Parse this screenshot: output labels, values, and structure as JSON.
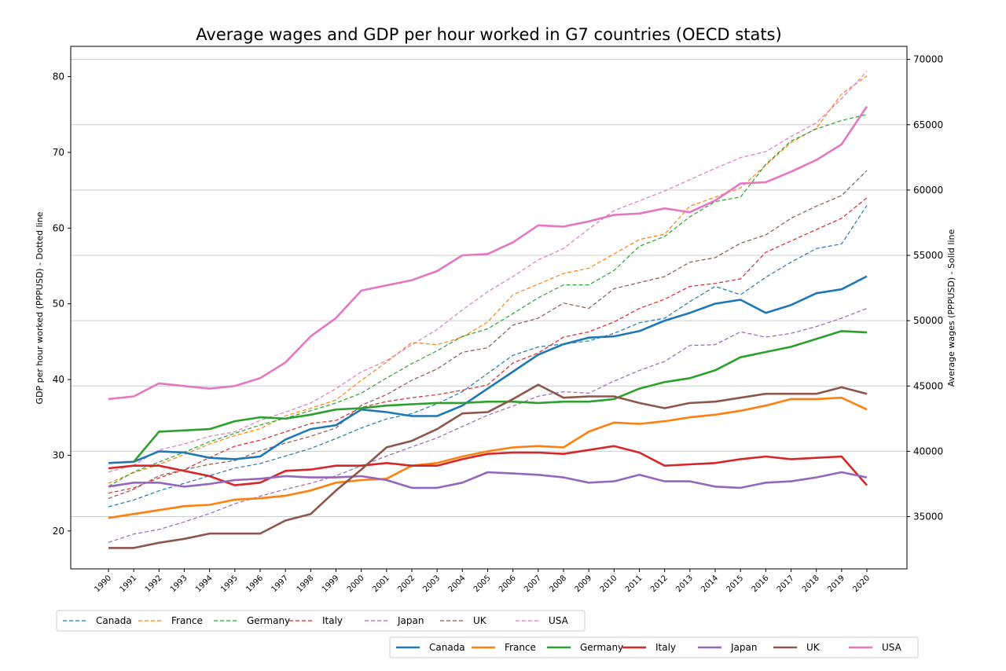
{
  "chart_data": {
    "type": "line",
    "title": "Average wages and GDP per hour worked in G7 countries (OECD stats)",
    "x": [
      1990,
      1991,
      1992,
      1993,
      1994,
      1995,
      1996,
      1997,
      1998,
      1999,
      2000,
      2001,
      2002,
      2003,
      2004,
      2005,
      2006,
      2007,
      2008,
      2009,
      2010,
      2011,
      2012,
      2013,
      2014,
      2015,
      2016,
      2017,
      2018,
      2019,
      2020
    ],
    "left_axis": {
      "label": "GDP per hour worked (PPPUSD) - Dotted line",
      "ylim": [
        15.0,
        84.0
      ],
      "ticks": [
        20,
        30,
        40,
        50,
        60,
        70,
        80
      ]
    },
    "right_axis": {
      "label": "Average wages (PPPUSD) - Solid line",
      "ylim": [
        31000,
        71000
      ],
      "ticks": [
        35000,
        40000,
        45000,
        50000,
        55000,
        60000,
        65000,
        70000
      ]
    },
    "grid": "horizontal lines at right-axis ticks",
    "gdp_series": [
      {
        "name": "Canada",
        "color": "#1f77b4",
        "values": [
          23.2,
          24.1,
          25.3,
          26.3,
          27.3,
          28.3,
          28.9,
          29.9,
          30.9,
          32.2,
          33.6,
          34.8,
          35.5,
          36.8,
          38.4,
          40.8,
          43.2,
          44.3,
          44.7,
          45.1,
          46.1,
          47.5,
          48.1,
          50.3,
          52.3,
          51.2,
          53.5,
          55.5,
          57.3,
          57.9,
          63.0
        ]
      },
      {
        "name": "France",
        "color": "#ff7f0e",
        "values": [
          26.3,
          27.7,
          28.8,
          30.1,
          31.5,
          32.6,
          33.5,
          35.2,
          36.2,
          37.3,
          39.9,
          42.3,
          44.9,
          44.6,
          45.6,
          47.6,
          51.2,
          52.6,
          54.0,
          54.7,
          56.6,
          58.5,
          59.2,
          62.9,
          64.1,
          65.3,
          68.3,
          71.3,
          73.2,
          77.7,
          80.1
        ]
      },
      {
        "name": "Germany",
        "color": "#2ca02c",
        "values": [
          25.9,
          27.8,
          29.1,
          30.4,
          31.8,
          32.9,
          34.0,
          34.9,
          35.9,
          36.9,
          38.2,
          40.2,
          42.1,
          43.8,
          45.7,
          46.7,
          48.7,
          50.8,
          52.5,
          52.5,
          54.4,
          57.6,
          58.9,
          61.5,
          63.5,
          64.1,
          68.4,
          71.5,
          73.1,
          74.2,
          75.0
        ]
      },
      {
        "name": "Italy",
        "color": "#d62728",
        "values": [
          25.0,
          25.7,
          27.0,
          28.1,
          29.7,
          31.2,
          32.0,
          33.1,
          34.2,
          34.6,
          36.3,
          37.1,
          37.6,
          38.0,
          38.6,
          39.3,
          42.2,
          43.5,
          45.6,
          46.3,
          47.6,
          49.4,
          50.6,
          52.3,
          52.7,
          53.3,
          56.8,
          58.3,
          59.8,
          61.3,
          64.0
        ]
      },
      {
        "name": "Japan",
        "color": "#9467bd",
        "values": [
          18.5,
          19.6,
          20.2,
          21.2,
          22.3,
          23.6,
          24.6,
          25.5,
          26.3,
          27.3,
          28.6,
          29.9,
          31.1,
          32.3,
          33.8,
          35.3,
          36.5,
          37.8,
          38.4,
          38.2,
          39.8,
          41.2,
          42.4,
          44.5,
          44.6,
          46.3,
          45.6,
          46.1,
          47.0,
          48.1,
          49.4
        ]
      },
      {
        "name": "UK",
        "color": "#8c564b",
        "values": [
          24.3,
          25.5,
          27.3,
          28.1,
          28.8,
          29.3,
          30.6,
          31.6,
          32.5,
          33.6,
          36.6,
          38.0,
          39.9,
          41.4,
          43.6,
          44.2,
          47.2,
          48.1,
          50.1,
          49.4,
          52.0,
          52.8,
          53.6,
          55.5,
          56.1,
          58.0,
          59.1,
          61.3,
          62.9,
          64.3,
          67.6
        ]
      },
      {
        "name": "USA",
        "color": "#e377c2",
        "values": [
          27.8,
          28.7,
          30.7,
          31.5,
          32.5,
          33.1,
          34.6,
          35.7,
          36.9,
          38.8,
          41.0,
          42.5,
          44.6,
          46.6,
          49.2,
          51.6,
          53.6,
          55.8,
          57.3,
          59.9,
          62.3,
          63.6,
          64.9,
          66.4,
          67.9,
          69.3,
          70.1,
          72.1,
          73.9,
          77.1,
          80.7
        ]
      }
    ],
    "wage_series": [
      {
        "name": "Canada",
        "color": "#1f77b4",
        "values": [
          39.1,
          39.2,
          40.0,
          39.9,
          39.5,
          39.4,
          39.6,
          40.9,
          41.7,
          42.0,
          43.2,
          43.0,
          42.7,
          42.7,
          43.5,
          44.8,
          46.1,
          47.4,
          48.2,
          48.7,
          48.8,
          49.2,
          50.0,
          50.6,
          51.3,
          51.6,
          50.6,
          51.2,
          52.1,
          52.4,
          53.4
        ]
      },
      {
        "name": "France",
        "color": "#ff7f0e",
        "values": [
          34.9,
          35.2,
          35.5,
          35.8,
          35.9,
          36.3,
          36.4,
          36.6,
          37.0,
          37.6,
          37.8,
          37.9,
          38.9,
          39.1,
          39.6,
          40.0,
          40.3,
          40.4,
          40.3,
          41.5,
          42.2,
          42.1,
          42.3,
          42.6,
          42.8,
          43.1,
          43.5,
          44.0,
          44.0,
          44.1,
          43.2
        ]
      },
      {
        "name": "Germany",
        "color": "#2ca02c",
        "values": [
          null,
          39.2,
          41.5,
          41.6,
          41.7,
          42.3,
          42.6,
          42.5,
          42.8,
          43.2,
          43.3,
          43.5,
          43.6,
          43.7,
          43.7,
          43.8,
          43.8,
          43.7,
          43.8,
          43.8,
          44.0,
          44.8,
          45.3,
          45.6,
          46.2,
          47.2,
          47.6,
          48.0,
          48.6,
          49.2,
          49.1
        ]
      },
      {
        "name": "Italy",
        "color": "#d62728",
        "values": [
          38.7,
          38.9,
          38.9,
          38.5,
          38.1,
          37.4,
          37.6,
          38.5,
          38.6,
          38.9,
          38.9,
          39.1,
          38.9,
          38.9,
          39.4,
          39.8,
          39.9,
          39.9,
          39.8,
          40.1,
          40.4,
          39.9,
          38.9,
          39.0,
          39.1,
          39.4,
          39.6,
          39.4,
          39.5,
          39.6,
          37.4
        ]
      },
      {
        "name": "Japan",
        "color": "#9467bd",
        "values": [
          37.3,
          37.6,
          37.6,
          37.3,
          37.5,
          37.8,
          37.9,
          38.1,
          38.0,
          38.0,
          38.1,
          37.8,
          37.2,
          37.2,
          37.6,
          38.4,
          38.3,
          38.2,
          38.0,
          37.6,
          37.7,
          38.2,
          37.7,
          37.7,
          37.3,
          37.2,
          37.6,
          37.7,
          38.0,
          38.4,
          38.0
        ]
      },
      {
        "name": "UK",
        "color": "#8c564b",
        "values": [
          32.6,
          32.6,
          33.0,
          33.3,
          33.7,
          33.7,
          33.7,
          34.7,
          35.2,
          37.0,
          38.6,
          40.3,
          40.8,
          41.7,
          42.9,
          43.0,
          44.0,
          45.1,
          44.1,
          44.2,
          44.2,
          43.7,
          43.3,
          43.7,
          43.8,
          44.1,
          44.4,
          44.4,
          44.4,
          44.9,
          44.4
        ]
      },
      {
        "name": "USA",
        "color": "#e377c2",
        "values": [
          44.0,
          44.2,
          45.2,
          45.0,
          44.8,
          45.0,
          45.6,
          46.8,
          48.8,
          50.2,
          52.3,
          52.7,
          53.1,
          53.8,
          55.0,
          55.1,
          56.0,
          57.3,
          57.2,
          57.6,
          58.1,
          58.2,
          58.6,
          58.3,
          59.2,
          60.5,
          60.6,
          61.4,
          62.3,
          63.5,
          66.4
        ]
      }
    ],
    "wage_value_scale_note": "wage values above are in thousands of PPPUSD",
    "legend_dotted": {
      "placement": "bottom-left",
      "entries": [
        "Canada",
        "France",
        "Germany",
        "Italy",
        "Japan",
        "UK",
        "USA"
      ]
    },
    "legend_solid": {
      "placement": "bottom-right",
      "entries": [
        "Canada",
        "France",
        "Germany",
        "Italy",
        "Japan",
        "UK",
        "USA"
      ]
    }
  }
}
